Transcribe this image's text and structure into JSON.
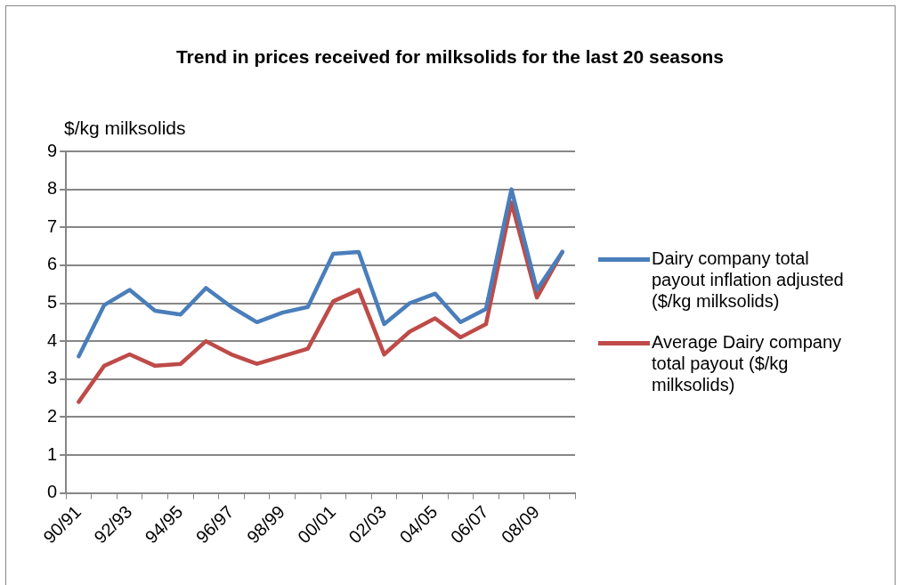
{
  "chart_data": {
    "type": "line",
    "title": "Trend in prices received for milksolids for the last 20 seasons",
    "ylabel": "$/kg milksolids",
    "categories": [
      "90/91",
      null,
      "92/93",
      null,
      "94/95",
      null,
      "96/97",
      null,
      "98/99",
      null,
      "00/01",
      null,
      "02/03",
      null,
      "04/05",
      null,
      "06/07",
      null,
      "08/09",
      null
    ],
    "series": [
      {
        "name": "Dairy company total payout inflation adjusted ($/kg milksolids)",
        "color": "#4a7ebb",
        "values": [
          3.6,
          4.95,
          5.35,
          4.8,
          4.7,
          5.4,
          4.9,
          4.5,
          4.75,
          4.9,
          6.3,
          6.35,
          4.45,
          5.0,
          5.25,
          4.5,
          4.85,
          8.0,
          5.35,
          6.35
        ]
      },
      {
        "name": "Average Dairy company total payout ($/kg milksolids)",
        "color": "#be4b48",
        "values": [
          2.4,
          3.35,
          3.65,
          3.35,
          3.4,
          4.0,
          3.65,
          3.4,
          3.6,
          3.8,
          5.05,
          5.35,
          3.65,
          4.25,
          4.6,
          4.1,
          4.45,
          7.65,
          5.15,
          6.35
        ]
      }
    ],
    "ylim": [
      0,
      9
    ],
    "yticks": [
      0,
      1,
      2,
      3,
      4,
      5,
      6,
      7,
      8,
      9
    ],
    "grid": "y",
    "legend": "right",
    "marker": "none",
    "line_style": "solid"
  }
}
